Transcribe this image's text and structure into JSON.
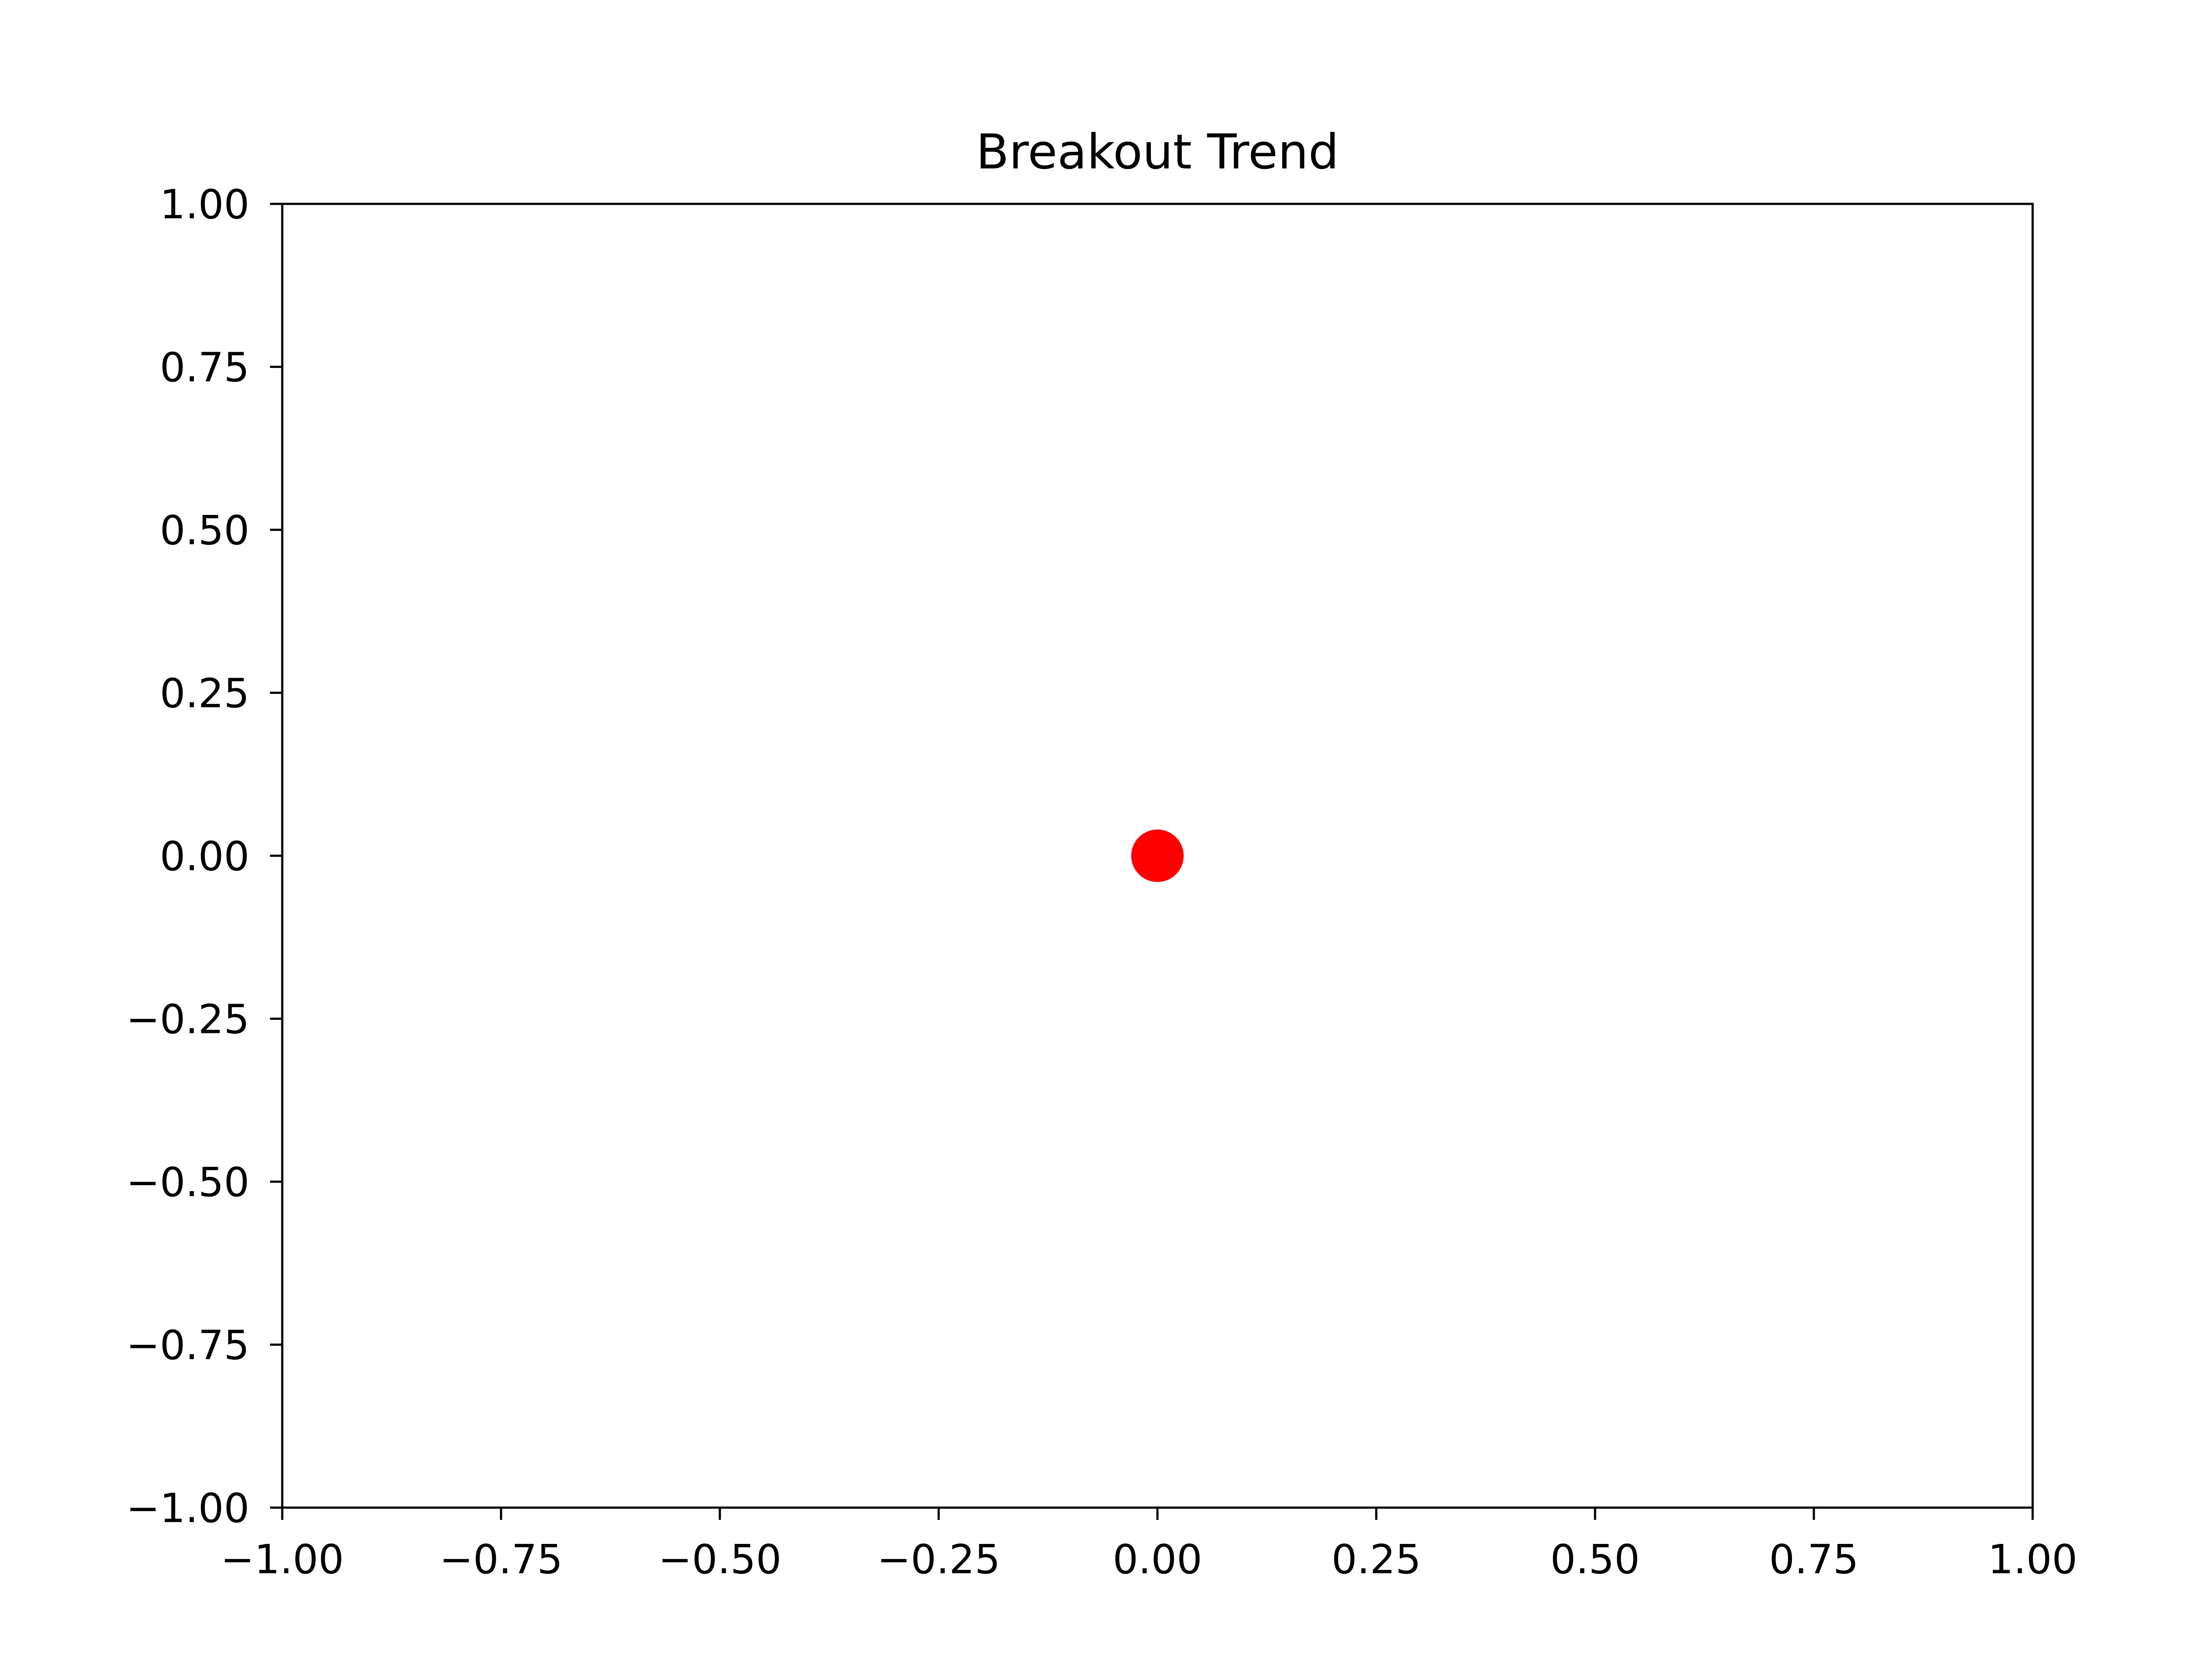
{
  "chart_data": {
    "type": "scatter",
    "title": "Breakout Trend",
    "xlabel": "",
    "ylabel": "",
    "xlim": [
      -1.0,
      1.0
    ],
    "ylim": [
      -1.0,
      1.0
    ],
    "x_ticks": [
      -1.0,
      -0.75,
      -0.5,
      -0.25,
      0.0,
      0.25,
      0.5,
      0.75,
      1.0
    ],
    "y_ticks": [
      -1.0,
      -0.75,
      -0.5,
      -0.25,
      0.0,
      0.25,
      0.5,
      0.75,
      1.0
    ],
    "x_tick_labels": [
      "−1.00",
      "−0.75",
      "−0.50",
      "−0.25",
      "0.00",
      "0.25",
      "0.50",
      "0.75",
      "1.00"
    ],
    "y_tick_labels": [
      "−1.00",
      "−0.75",
      "−0.50",
      "−0.25",
      "0.00",
      "0.25",
      "0.50",
      "0.75",
      "1.00"
    ],
    "grid": false,
    "legend": null,
    "series": [
      {
        "color": "#ff0000",
        "points": [
          {
            "x": 0.0,
            "y": 0.0
          }
        ]
      }
    ]
  }
}
